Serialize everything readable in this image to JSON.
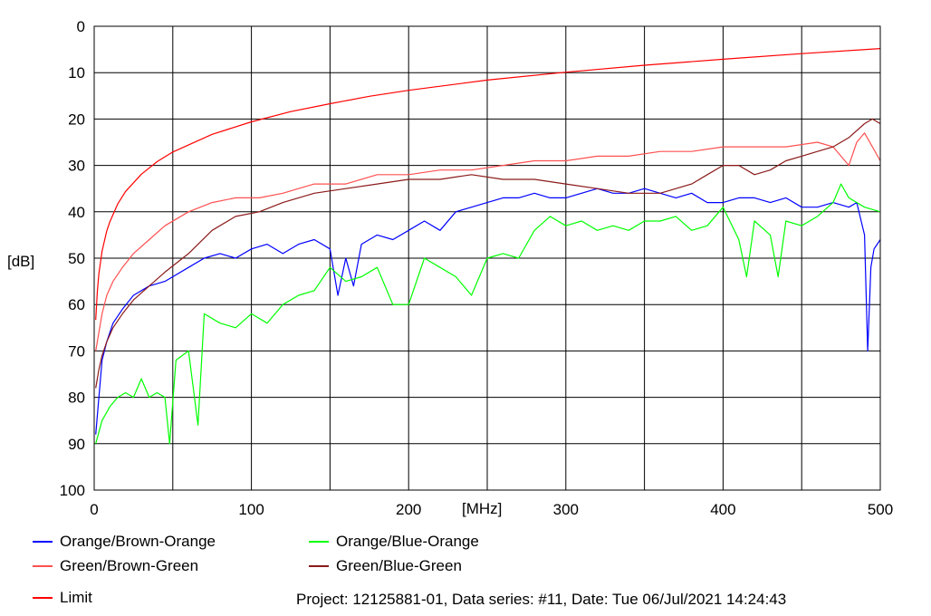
{
  "chart_data": {
    "type": "line",
    "xlabel": "[MHz]",
    "ylabel": "[dB]",
    "xlim": [
      0,
      500
    ],
    "ylim": [
      0,
      100
    ],
    "y_inverted": true,
    "grid": true,
    "x_ticks": [
      0,
      100,
      200,
      300,
      400,
      500
    ],
    "x_tick_labels": [
      "0",
      "100",
      "200",
      "300",
      "400",
      "500"
    ],
    "x_minor_grid": [
      50,
      150,
      250,
      350,
      450
    ],
    "y_ticks": [
      0,
      10,
      20,
      30,
      40,
      50,
      60,
      70,
      80,
      90,
      100
    ],
    "y_tick_labels": [
      "0",
      "10",
      "20",
      "30",
      "40",
      "50",
      "60",
      "70",
      "80",
      "90",
      "100"
    ],
    "legend_position": "bottom",
    "series": [
      {
        "name": "Orange/Brown-Orange",
        "color": "#0000ff",
        "x": [
          1,
          3,
          5,
          8,
          12,
          18,
          25,
          35,
          45,
          50,
          60,
          70,
          80,
          90,
          100,
          110,
          120,
          130,
          140,
          150,
          155,
          160,
          165,
          170,
          180,
          190,
          200,
          210,
          220,
          230,
          240,
          250,
          260,
          270,
          280,
          290,
          300,
          310,
          320,
          330,
          340,
          350,
          360,
          370,
          380,
          390,
          400,
          410,
          420,
          430,
          440,
          450,
          460,
          470,
          480,
          485,
          490,
          492,
          494,
          496,
          500
        ],
        "y": [
          88,
          80,
          72,
          68,
          64,
          61,
          58,
          56,
          55,
          54,
          52,
          50,
          49,
          50,
          48,
          47,
          49,
          47,
          46,
          48,
          58,
          50,
          56,
          47,
          45,
          46,
          44,
          42,
          44,
          40,
          39,
          38,
          37,
          37,
          36,
          37,
          37,
          36,
          35,
          36,
          36,
          35,
          36,
          37,
          36,
          38,
          38,
          37,
          37,
          38,
          37,
          39,
          39,
          38,
          39,
          38,
          45,
          70,
          52,
          48,
          46
        ]
      },
      {
        "name": "Orange/Blue-Orange",
        "color": "#00ff00",
        "x": [
          1,
          5,
          10,
          15,
          20,
          25,
          30,
          35,
          40,
          45,
          48,
          52,
          60,
          66,
          70,
          80,
          90,
          100,
          110,
          120,
          130,
          140,
          150,
          160,
          170,
          180,
          190,
          200,
          210,
          220,
          230,
          240,
          250,
          260,
          270,
          280,
          290,
          300,
          310,
          320,
          330,
          340,
          350,
          360,
          370,
          380,
          390,
          400,
          410,
          415,
          420,
          430,
          435,
          440,
          450,
          460,
          470,
          475,
          480,
          490,
          500
        ],
        "y": [
          90,
          85,
          82,
          80,
          79,
          80,
          76,
          80,
          79,
          80,
          90,
          72,
          70,
          86,
          62,
          64,
          65,
          62,
          64,
          60,
          58,
          57,
          52,
          55,
          54,
          52,
          60,
          60,
          50,
          52,
          54,
          58,
          50,
          49,
          50,
          44,
          41,
          43,
          42,
          44,
          43,
          44,
          42,
          42,
          41,
          44,
          43,
          39,
          46,
          54,
          42,
          45,
          54,
          42,
          43,
          41,
          38,
          34,
          37,
          39,
          40
        ]
      },
      {
        "name": "Green/Brown-Green",
        "color": "#ff5050",
        "x": [
          1,
          3,
          5,
          8,
          12,
          18,
          25,
          35,
          45,
          60,
          75,
          90,
          105,
          120,
          140,
          160,
          180,
          200,
          220,
          240,
          260,
          280,
          300,
          320,
          340,
          360,
          380,
          400,
          420,
          440,
          460,
          470,
          480,
          485,
          490,
          495,
          500
        ],
        "y": [
          70,
          66,
          62,
          58,
          55,
          52,
          49,
          46,
          43,
          40,
          38,
          37,
          37,
          36,
          34,
          34,
          32,
          32,
          31,
          31,
          30,
          29,
          29,
          28,
          28,
          27,
          27,
          26,
          26,
          26,
          25,
          26,
          30,
          25,
          23,
          26,
          29
        ]
      },
      {
        "name": "Green/Blue-Green",
        "color": "#8b1a1a",
        "x": [
          1,
          3,
          5,
          8,
          12,
          18,
          25,
          35,
          45,
          60,
          75,
          90,
          105,
          120,
          140,
          160,
          180,
          200,
          220,
          240,
          260,
          280,
          300,
          320,
          340,
          360,
          370,
          380,
          390,
          400,
          410,
          420,
          430,
          440,
          450,
          460,
          470,
          480,
          490,
          495,
          500
        ],
        "y": [
          78,
          74,
          71,
          68,
          65,
          62,
          59,
          56,
          53,
          49,
          44,
          41,
          40,
          38,
          36,
          35,
          34,
          33,
          33,
          32,
          33,
          33,
          34,
          35,
          36,
          36,
          35,
          34,
          32,
          30,
          30,
          32,
          31,
          29,
          28,
          27,
          26,
          24,
          21,
          20,
          21
        ]
      },
      {
        "name": "Limit",
        "color": "#ff0000",
        "x": [
          1,
          2,
          3,
          5,
          8,
          10,
          15,
          20,
          30,
          40,
          50,
          75,
          100,
          125,
          150,
          175,
          200,
          250,
          300,
          350,
          400,
          450,
          500
        ],
        "y": [
          63.3,
          57.1,
          53.3,
          48.5,
          44.1,
          42.1,
          38.3,
          35.6,
          31.9,
          29.2,
          27.1,
          23.3,
          20.6,
          18.4,
          16.7,
          15.1,
          13.8,
          11.6,
          9.9,
          8.4,
          7.1,
          5.9,
          4.8
        ]
      }
    ],
    "annotation": "Project: 12125881-01, Data series: #11, Date: Tue 06/Jul/2021 14:24:43"
  }
}
